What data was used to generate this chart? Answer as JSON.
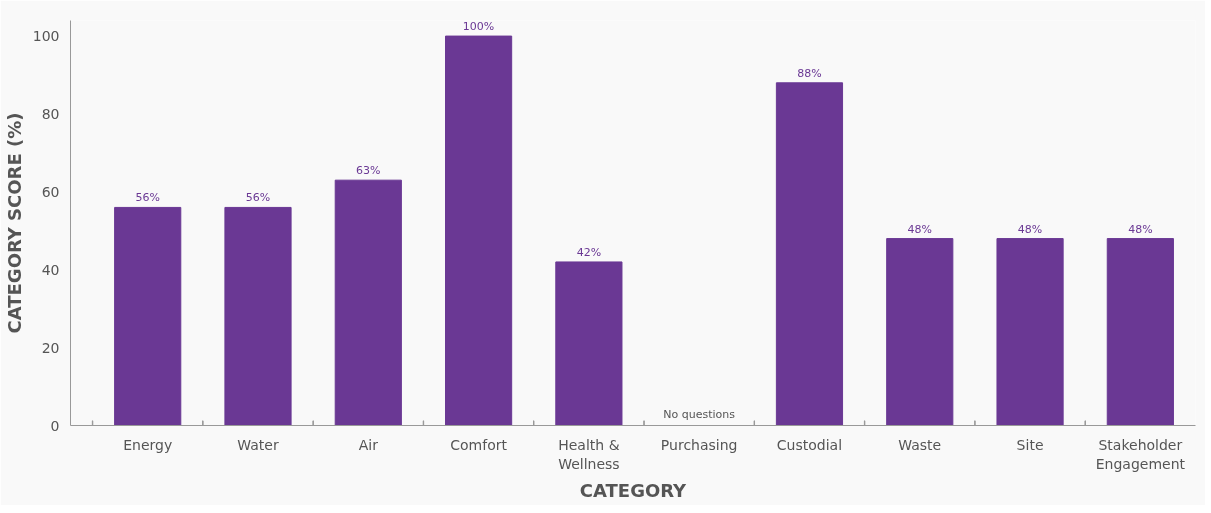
{
  "chart_data": {
    "type": "bar",
    "xlabel": "CATEGORY",
    "ylabel": "CATEGORY SCORE (%)",
    "categories": [
      "Energy",
      "Water",
      "Air",
      "Comfort",
      "Health & Wellness",
      "Purchasing",
      "Custodial",
      "Waste",
      "Site",
      "Stakeholder Engagement"
    ],
    "values": [
      56,
      56,
      63,
      100,
      42,
      null,
      88,
      48,
      48,
      48
    ],
    "value_labels": [
      "56%",
      "56%",
      "63%",
      "100%",
      "42%",
      null,
      "88%",
      "48%",
      "48%",
      "48%"
    ],
    "color": "#6a3894",
    "ylim": [
      0,
      104
    ],
    "yticks": [
      0,
      20,
      40,
      60,
      80,
      100
    ],
    "grid": false,
    "annotations": [
      "No questions"
    ]
  }
}
